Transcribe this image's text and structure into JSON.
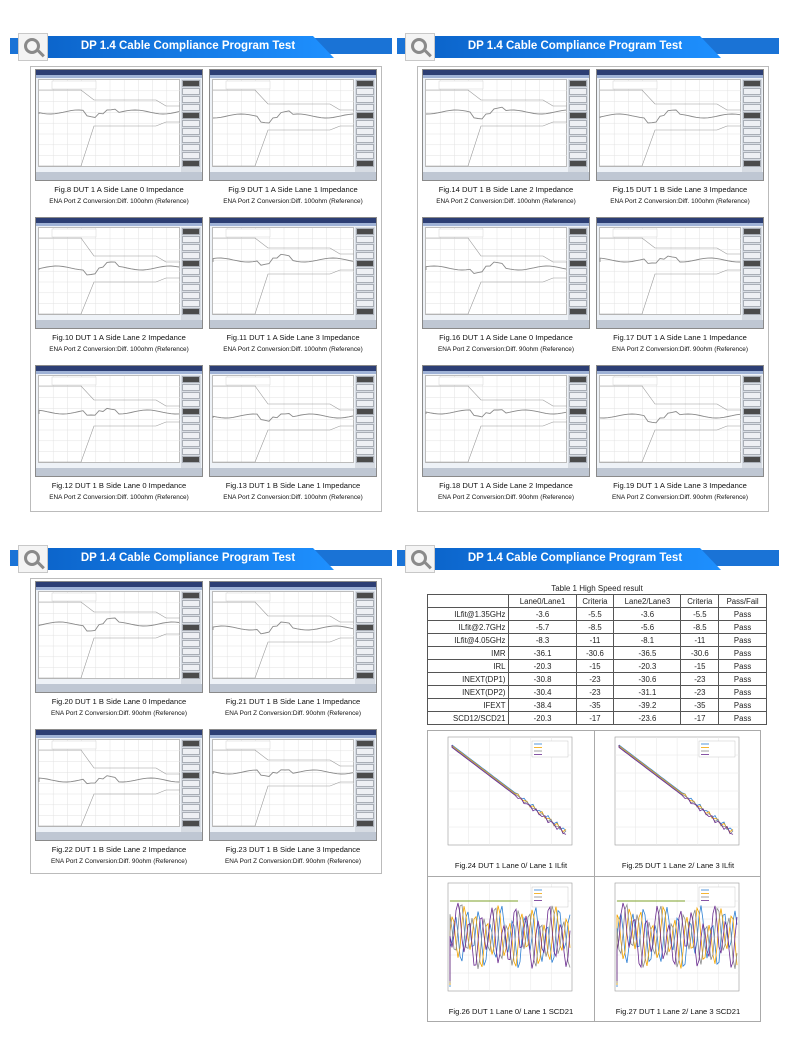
{
  "header_title": "DP 1.4 Cable Compliance Program Test",
  "colors": {
    "header_blue": "#0b63c9",
    "trace_gray": "#8a8a8a",
    "trace_blue": "#2d7fd3",
    "trace_yellow": "#f2a400",
    "trace_green": "#7da22a",
    "trace_purple": "#6a2b8f"
  },
  "pages": [
    {
      "figures": [
        {
          "caption": "Fig.8 DUT 1 A Side Lane 0 Impedance",
          "sub": "ENA Port Z Conversion:Diff. 100ohm (Reference)"
        },
        {
          "caption": "Fig.9 DUT 1 A Side Lane 1 Impedance",
          "sub": "ENA Port Z Conversion:Diff. 100ohm (Reference)"
        },
        {
          "caption": "Fig.10 DUT 1 A Side Lane 2 Impedance",
          "sub": "ENA Port Z Conversion:Diff. 100ohm (Reference)"
        },
        {
          "caption": "Fig.11 DUT 1 A Side Lane 3 Impedance",
          "sub": "ENA Port Z Conversion:Diff. 100ohm (Reference)"
        },
        {
          "caption": "Fig.12 DUT 1 B Side Lane 0 Impedance",
          "sub": "ENA Port Z Conversion:Diff. 100ohm (Reference)"
        },
        {
          "caption": "Fig.13 DUT 1 B Side Lane 1 Impedance",
          "sub": "ENA Port Z Conversion:Diff. 100ohm (Reference)"
        }
      ]
    },
    {
      "figures": [
        {
          "caption": "Fig.14 DUT 1 B Side Lane 2 Impedance",
          "sub": "ENA Port Z Conversion:Diff. 100ohm (Reference)"
        },
        {
          "caption": "Fig.15 DUT 1 B Side Lane 3 Impedance",
          "sub": "ENA Port Z Conversion:Diff. 100ohm (Reference)"
        },
        {
          "caption": "Fig.16 DUT 1 A Side Lane 0 Impedance",
          "sub": "ENA Port Z Conversion:Diff. 90ohm (Reference)"
        },
        {
          "caption": "Fig.17 DUT 1 A Side Lane 1 Impedance",
          "sub": "ENA Port Z Conversion:Diff. 90ohm (Reference)"
        },
        {
          "caption": "Fig.18 DUT 1 A Side Lane 2 Impedance",
          "sub": "ENA Port Z Conversion:Diff. 90ohm (Reference)"
        },
        {
          "caption": "Fig.19 DUT 1 A Side Lane 3 Impedance",
          "sub": "ENA Port Z Conversion:Diff. 90ohm (Reference)"
        }
      ]
    },
    {
      "figures": [
        {
          "caption": "Fig.20 DUT 1 B Side Lane 0 Impedance",
          "sub": "ENA Port Z Conversion:Diff. 90ohm (Reference)"
        },
        {
          "caption": "Fig.21 DUT 1 B Side Lane 1 Impedance",
          "sub": "ENA Port Z Conversion:Diff. 90ohm (Reference)"
        },
        {
          "caption": "Fig.22 DUT 1 B Side Lane 2 Impedance",
          "sub": "ENA Port Z Conversion:Diff. 90ohm (Reference)"
        },
        {
          "caption": "Fig.23 DUT 1 B Side Lane 3 Impedance",
          "sub": "ENA Port Z Conversion:Diff. 90ohm (Reference)"
        }
      ]
    }
  ],
  "table": {
    "title": "Table 1 High Speed result",
    "headers": [
      "",
      "Lane0/Lane1",
      "Criteria",
      "Lane2/Lane3",
      "Criteria",
      "Pass/Fail"
    ],
    "rows": [
      [
        "ILfit@1.35GHz",
        "-3.6",
        "-5.5",
        "-3.6",
        "-5.5",
        "Pass"
      ],
      [
        "ILfit@2.7GHz",
        "-5.7",
        "-8.5",
        "-5.6",
        "-8.5",
        "Pass"
      ],
      [
        "ILfit@4.05GHz",
        "-8.3",
        "-11",
        "-8.1",
        "-11",
        "Pass"
      ],
      [
        "IMR",
        "-36.1",
        "-30.6",
        "-36.5",
        "-30.6",
        "Pass"
      ],
      [
        "IRL",
        "-20.3",
        "-15",
        "-20.3",
        "-15",
        "Pass"
      ],
      [
        "INEXT(DP1)",
        "-30.8",
        "-23",
        "-30.6",
        "-23",
        "Pass"
      ],
      [
        "INEXT(DP2)",
        "-30.4",
        "-23",
        "-31.1",
        "-23",
        "Pass"
      ],
      [
        "IFEXT",
        "-38.4",
        "-35",
        "-39.2",
        "-35",
        "Pass"
      ],
      [
        "SCD12/SCD21",
        "-20.3",
        "-17",
        "-23.6",
        "-17",
        "Pass"
      ]
    ]
  },
  "charts": [
    {
      "caption": "Fig.24 DUT 1 Lane 0/ Lane 1 ILfit"
    },
    {
      "caption": "Fig.25 DUT 1 Lane 2/ Lane 3 ILfit"
    },
    {
      "caption": "Fig.26 DUT 1 Lane 0/ Lane 1 SCD21"
    },
    {
      "caption": "Fig.27 DUT 1 Lane 2/ Lane 3 SCD21"
    }
  ]
}
